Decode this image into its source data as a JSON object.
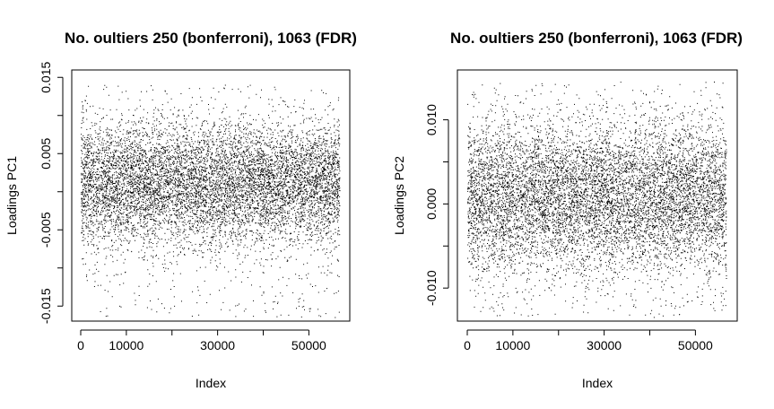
{
  "chart_data": [
    {
      "type": "scatter",
      "title": "No. oultiers 250 (bonferroni), 1063 (FDR)",
      "xlabel": "Index",
      "ylabel": "Loadings PC1",
      "xlim": [
        0,
        57000
      ],
      "ylim": [
        -0.0165,
        0.0155
      ],
      "xticks": [
        0,
        10000,
        20000,
        30000,
        40000,
        50000
      ],
      "xtick_labels": [
        "0",
        "10000",
        "",
        "30000",
        "",
        "50000"
      ],
      "yticks": [
        -0.015,
        -0.01,
        -0.005,
        0,
        0.005,
        0.01,
        0.015
      ],
      "ytick_labels": [
        "-0.015",
        "",
        "-0.005",
        "",
        "0.005",
        "",
        "0.015"
      ],
      "n_points": 57000,
      "dense_band": [
        -0.006,
        0.008
      ],
      "sparse_extent": [
        -0.0165,
        0.014
      ],
      "point_color": "#000000",
      "grid": false,
      "legend": "none"
    },
    {
      "type": "scatter",
      "title": "No. oultiers 250 (bonferroni), 1063 (FDR)",
      "xlabel": "Index",
      "ylabel": "Loadings PC2",
      "xlim": [
        0,
        57000
      ],
      "ylim": [
        -0.0135,
        0.0155
      ],
      "xticks": [
        0,
        10000,
        20000,
        30000,
        40000,
        50000
      ],
      "xtick_labels": [
        "0",
        "10000",
        "",
        "30000",
        "",
        "50000"
      ],
      "yticks": [
        -0.01,
        -0.005,
        0,
        0.005,
        0.01
      ],
      "ytick_labels": [
        "-0.010",
        "",
        "0.000",
        "",
        "0.010"
      ],
      "n_points": 57000,
      "dense_band": [
        -0.007,
        0.0085
      ],
      "sparse_extent": [
        -0.0135,
        0.0145
      ],
      "point_color": "#000000",
      "grid": false,
      "legend": "none"
    }
  ]
}
